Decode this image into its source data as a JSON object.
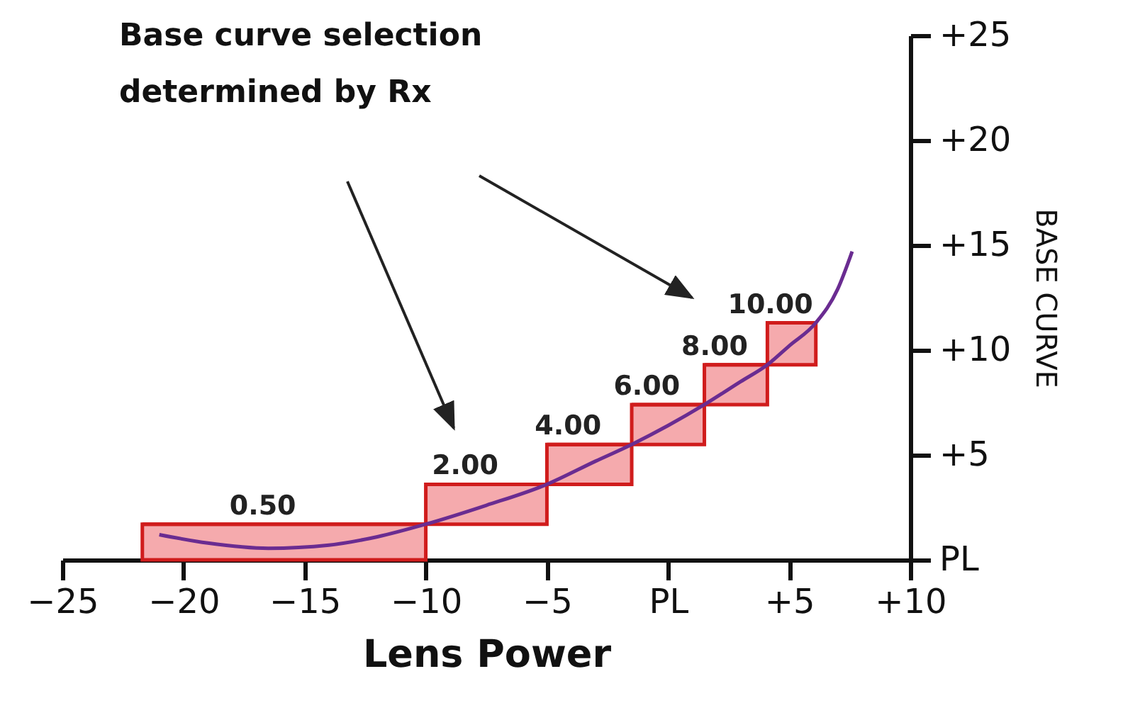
{
  "chart_data": {
    "type": "bar",
    "xlabel": "Lens Power",
    "ylabel": "BASE CURVE",
    "annotations": [
      "Base curve selection determined by Rx",
      {
        "text": "0.50",
        "x": -15.85,
        "y": 1.7
      },
      {
        "text": "2.00",
        "x": -7.5,
        "y": 3.6
      },
      {
        "text": "4.00",
        "x": -3.25,
        "y": 5.5
      },
      {
        "text": "6.00",
        "x": 0,
        "y": 7.4
      },
      {
        "text": "8.00",
        "x": 2.8,
        "y": 9.3
      },
      {
        "text": "10.00",
        "x": 5.1,
        "y": 11.3
      }
    ],
    "xlim": [
      -25,
      10
    ],
    "ylim": [
      0,
      25
    ],
    "xticks": [
      -25,
      -20,
      -15,
      -10,
      -5,
      {
        "value": 0,
        "label": "PL"
      },
      {
        "value": 5,
        "label": "+5"
      },
      {
        "value": 10,
        "label": "+10"
      }
    ],
    "yticks": [
      {
        "value": 0,
        "label": "PL"
      },
      {
        "value": 5,
        "label": "+5"
      },
      {
        "value": 10,
        "label": "+10"
      },
      {
        "value": 15,
        "label": "+15"
      },
      {
        "value": 20,
        "label": "+20"
      },
      {
        "value": 25,
        "label": "+25"
      }
    ],
    "grid": false,
    "series": [
      {
        "color": "#f5aaad",
        "x": [
          -15.85,
          -7.5,
          -3.25,
          0,
          2.8,
          5.1
        ],
        "base": [
          0,
          1.7,
          3.6,
          5.5,
          7.4,
          9.3
        ],
        "values": [
          1.7,
          1.9,
          1.9,
          1.9,
          1.9,
          2.0
        ],
        "xerrors": [
          [
            -21.7,
            -10
          ],
          [
            -10,
            -5
          ],
          [
            -5,
            -1.5
          ],
          [
            -1.5,
            1.5
          ],
          [
            1.5,
            4.1
          ],
          [
            4.1,
            6.1
          ]
        ]
      },
      {
        "type": "line",
        "color": "#6a2c91",
        "x": [
          -21,
          -19,
          -16.5,
          -14,
          -12,
          -10,
          -7.5,
          -5,
          -3,
          -1.5,
          0,
          1.5,
          3,
          4.1,
          5,
          6.1,
          7,
          7.6
        ],
        "values": [
          1.2,
          0.8,
          0.55,
          0.7,
          1.1,
          1.7,
          2.6,
          3.6,
          4.7,
          5.5,
          6.4,
          7.4,
          8.5,
          9.3,
          10.2,
          11.3,
          12.9,
          14.7
        ]
      }
    ]
  }
}
